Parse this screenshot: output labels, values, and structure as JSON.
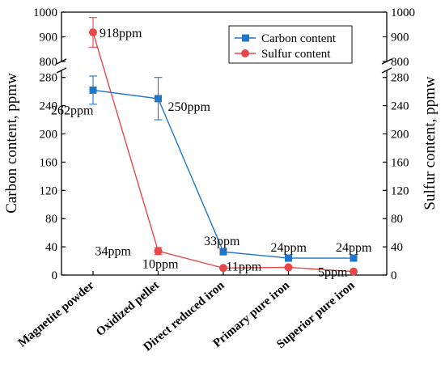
{
  "chart_data": {
    "type": "line",
    "categories": [
      "Magnetite powder",
      "Oxidized pellet",
      "Direct reduced iron",
      "Primary pure iron",
      "Superior pure iron"
    ],
    "xlabel": "",
    "ylabel": "Carbon content, ppmw",
    "y2label": "Sulfur content, ppmw",
    "ylim_lower": [
      0,
      290
    ],
    "ylim_upper": [
      800,
      1000
    ],
    "axis_break": true,
    "y_ticks_lower": [
      "0",
      "40",
      "80",
      "120",
      "160",
      "200",
      "240",
      "280"
    ],
    "y_ticks_upper": [
      "800",
      "900",
      "1000"
    ],
    "legend_position": "top-right",
    "series": [
      {
        "name": "Carbon content",
        "axis": "left",
        "marker": "square",
        "color": "#1f77c8",
        "values": [
          262,
          250,
          33,
          24,
          24
        ],
        "errors": [
          20,
          30,
          0,
          0,
          0
        ],
        "labels": [
          "262ppm",
          "250ppm",
          "33ppm",
          "24ppm",
          "24ppm"
        ]
      },
      {
        "name": "Sulfur content",
        "axis": "right",
        "marker": "circle",
        "color": "#e8474a",
        "values": [
          918,
          34,
          10,
          11,
          5
        ],
        "errors": [
          60,
          5,
          0,
          0,
          0
        ],
        "labels": [
          "918ppm",
          "34ppm",
          "10ppm",
          "11ppm",
          "5ppm"
        ]
      }
    ]
  }
}
